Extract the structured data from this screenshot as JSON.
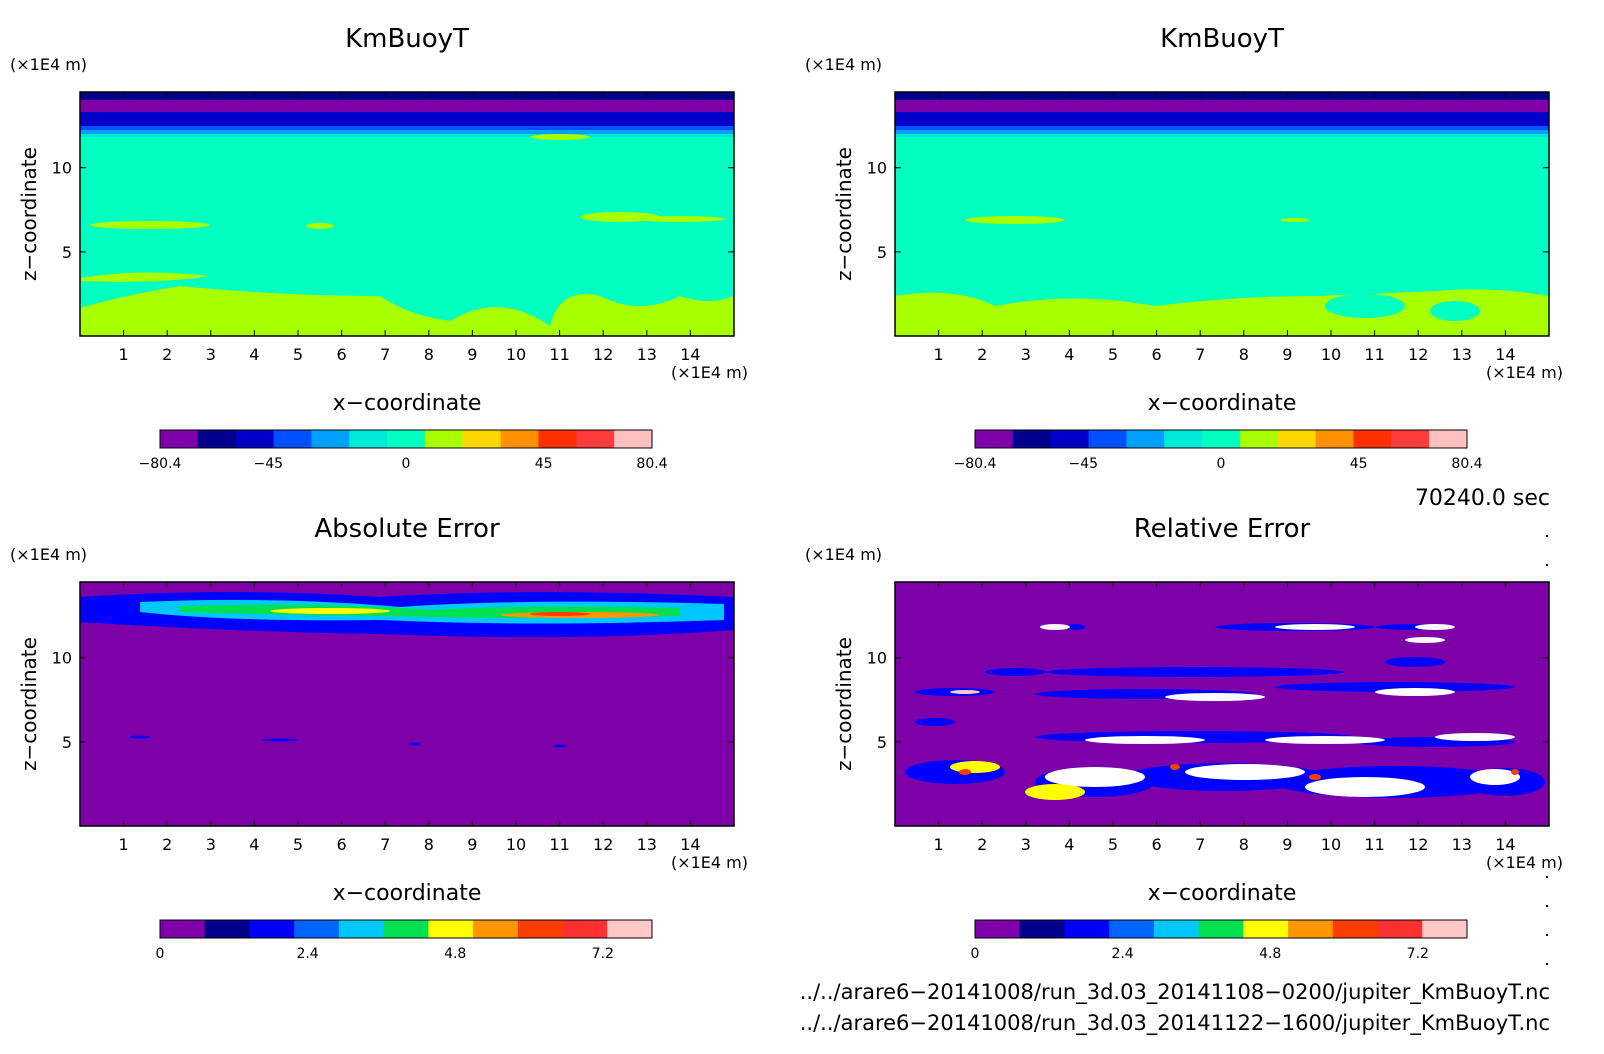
{
  "chart_data": [
    {
      "type": "heatmap",
      "title": "KmBuoyT",
      "xlabel": "x−coordinate",
      "ylabel": "z−coordinate",
      "x_unit": "(×1E4 m)",
      "y_unit": "(×1E4 m)",
      "xlim": [
        0,
        15
      ],
      "ylim": [
        0,
        14.5
      ],
      "x_ticks": [
        "1",
        "2",
        "3",
        "4",
        "5",
        "6",
        "7",
        "8",
        "9",
        "10",
        "11",
        "12",
        "13",
        "14"
      ],
      "y_ticks": [
        "5",
        "10"
      ],
      "colorbar": {
        "min": -80.4,
        "max": 80.4,
        "tick_labels": [
          "−80.4",
          "−45",
          "0",
          "45",
          "80.4"
        ],
        "tick_values": [
          -80.4,
          -45,
          0,
          45,
          80.4
        ],
        "colors": [
          "#7d00a8",
          "#00008c",
          "#0000c8",
          "#0050ff",
          "#00a0ff",
          "#00e8d8",
          "#00ffc0",
          "#a8ff00",
          "#ffd700",
          "#ff9000",
          "#ff3000",
          "#ff3c3c",
          "#ffc0c0"
        ]
      }
    },
    {
      "type": "heatmap",
      "title": "KmBuoyT",
      "xlabel": "x−coordinate",
      "ylabel": "z−coordinate",
      "x_unit": "(×1E4 m)",
      "y_unit": "(×1E4 m)",
      "xlim": [
        0,
        15
      ],
      "ylim": [
        0,
        14.5
      ],
      "x_ticks": [
        "1",
        "2",
        "3",
        "4",
        "5",
        "6",
        "7",
        "8",
        "9",
        "10",
        "11",
        "12",
        "13",
        "14"
      ],
      "y_ticks": [
        "5",
        "10"
      ],
      "colorbar": {
        "min": -80.4,
        "max": 80.4,
        "tick_labels": [
          "−80.4",
          "−45",
          "0",
          "45",
          "80.4"
        ],
        "tick_values": [
          -80.4,
          -45,
          0,
          45,
          80.4
        ],
        "colors": [
          "#7d00a8",
          "#00008c",
          "#0000c8",
          "#0050ff",
          "#00a0ff",
          "#00e8d8",
          "#00ffc0",
          "#a8ff00",
          "#ffd700",
          "#ff9000",
          "#ff3000",
          "#ff3c3c",
          "#ffc0c0"
        ]
      }
    },
    {
      "type": "heatmap",
      "title": "Absolute Error",
      "xlabel": "x−coordinate",
      "ylabel": "z−coordinate",
      "x_unit": "(×1E4 m)",
      "y_unit": "(×1E4 m)",
      "xlim": [
        0,
        15
      ],
      "ylim": [
        0,
        14.5
      ],
      "x_ticks": [
        "1",
        "2",
        "3",
        "4",
        "5",
        "6",
        "7",
        "8",
        "9",
        "10",
        "11",
        "12",
        "13",
        "14"
      ],
      "y_ticks": [
        "5",
        "10"
      ],
      "colorbar": {
        "min": 0,
        "max": 8,
        "tick_labels": [
          "0",
          "2.4",
          "4.8",
          "7.2"
        ],
        "tick_values": [
          0,
          2.4,
          4.8,
          7.2
        ],
        "colors": [
          "#7d00a8",
          "#00008c",
          "#0000ff",
          "#0064ff",
          "#00c8ff",
          "#00e050",
          "#ffff00",
          "#ff9600",
          "#ff3c00",
          "#ff3030",
          "#ffc8c8"
        ]
      }
    },
    {
      "type": "heatmap",
      "title": "Relative Error",
      "xlabel": "x−coordinate",
      "ylabel": "z−coordinate",
      "x_unit": "(×1E4 m)",
      "y_unit": "(×1E4 m)",
      "xlim": [
        0,
        15
      ],
      "ylim": [
        0,
        14.5
      ],
      "x_ticks": [
        "1",
        "2",
        "3",
        "4",
        "5",
        "6",
        "7",
        "8",
        "9",
        "10",
        "11",
        "12",
        "13",
        "14"
      ],
      "y_ticks": [
        "5",
        "10"
      ],
      "colorbar": {
        "min": 0,
        "max": 8,
        "tick_labels": [
          "0",
          "2.4",
          "4.8",
          "7.2"
        ],
        "tick_values": [
          0,
          2.4,
          4.8,
          7.2
        ],
        "colors": [
          "#7d00a8",
          "#00008c",
          "#0000ff",
          "#0064ff",
          "#00c8ff",
          "#00e050",
          "#ffff00",
          "#ff9600",
          "#ff3c00",
          "#ff3030",
          "#ffc8c8"
        ]
      }
    }
  ],
  "timestamp": "70240.0 sec",
  "files": [
    "../../arare6−20141008/run_3d.03_20141108−0200/jupiter_KmBuoyT.nc",
    "../../arare6−20141008/run_3d.03_20141122−1600/jupiter_KmBuoyT.nc"
  ]
}
